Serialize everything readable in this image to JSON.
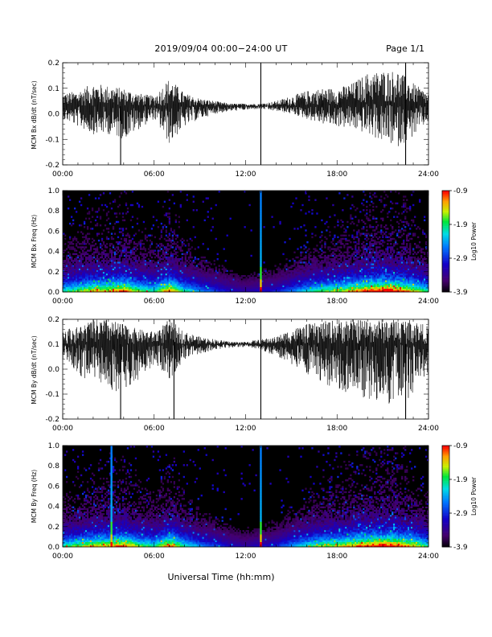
{
  "header": {
    "title": "2019/09/04  00:00−24:00 UT",
    "page": "Page 1/1"
  },
  "footer": {
    "xlabel": "Universal Time (hh:mm)"
  },
  "chart_data": [
    {
      "type": "line",
      "ylabel": "MCM Bx dB/dt (nT/sec)",
      "xlim": [
        0,
        24
      ],
      "ylim": [
        -0.2,
        0.2
      ],
      "xticks": [
        "00:00",
        "06:00",
        "12:00",
        "18:00",
        "24:00"
      ],
      "yticks": [
        "-0.2",
        "-0.1",
        "0.0",
        "0.1",
        "0.2"
      ],
      "grid": false,
      "x_hours": [
        0,
        1,
        2,
        3,
        4,
        5,
        6,
        7,
        8,
        9,
        10,
        11,
        12,
        13,
        14,
        15,
        16,
        17,
        18,
        19,
        20,
        21,
        22,
        23,
        24
      ],
      "y_center": [
        0.03,
        0.03,
        0.03,
        0.03,
        0.03,
        0.03,
        0.03,
        0.03,
        0.03,
        0.03,
        0.03,
        0.03,
        0.03,
        0.03,
        0.03,
        0.03,
        0.03,
        0.035,
        0.035,
        0.04,
        0.04,
        0.04,
        0.04,
        0.035,
        0.03
      ],
      "y_upper": [
        0.08,
        0.09,
        0.12,
        0.11,
        0.1,
        0.08,
        0.07,
        0.14,
        0.08,
        0.06,
        0.05,
        0.04,
        0.04,
        0.04,
        0.05,
        0.07,
        0.09,
        0.1,
        0.1,
        0.12,
        0.16,
        0.17,
        0.17,
        0.12,
        0.08
      ],
      "y_lower": [
        -0.02,
        -0.05,
        -0.08,
        -0.08,
        -0.1,
        -0.06,
        -0.02,
        -0.12,
        -0.05,
        -0.02,
        0.0,
        0.01,
        0.015,
        0.02,
        0.01,
        0.0,
        -0.02,
        -0.04,
        -0.05,
        -0.06,
        -0.08,
        -0.11,
        -0.13,
        -0.09,
        -0.03
      ],
      "spikes": [
        {
          "x": 3.8,
          "y": -0.2
        },
        {
          "x": 13.0,
          "y": 0.2
        },
        {
          "x": 13.0,
          "y": -0.2
        },
        {
          "x": 22.5,
          "y": 0.2
        },
        {
          "x": 22.5,
          "y": -0.2
        }
      ]
    },
    {
      "type": "heatmap",
      "ylabel": "MCM Bx Freq (Hz)",
      "xlim": [
        0,
        24
      ],
      "ylim": [
        0,
        1
      ],
      "xticks": [
        "00:00",
        "06:00",
        "12:00",
        "18:00",
        "24:00"
      ],
      "yticks": [
        "0.0",
        "0.2",
        "0.4",
        "0.6",
        "0.8",
        "1.0"
      ],
      "colorbar": {
        "label": "Log10 Power",
        "ticks": [
          "-0.9",
          "-1.9",
          "-2.9",
          "-3.9"
        ],
        "range": [
          -3.9,
          -0.9
        ]
      },
      "activity": [
        0.6,
        0.7,
        0.8,
        0.8,
        0.9,
        0.7,
        0.6,
        0.9,
        0.6,
        0.45,
        0.35,
        0.25,
        0.2,
        0.25,
        0.3,
        0.4,
        0.55,
        0.65,
        0.7,
        0.8,
        0.95,
        1.0,
        0.95,
        0.8,
        0.6
      ],
      "broadband_lines_x_hours": [
        13.0
      ]
    },
    {
      "type": "line",
      "ylabel": "MCM By dB/dt (nT/sec)",
      "xlim": [
        0,
        24
      ],
      "ylim": [
        -0.2,
        0.2
      ],
      "xticks": [
        "00:00",
        "06:00",
        "12:00",
        "18:00",
        "24:00"
      ],
      "yticks": [
        "-0.2",
        "-0.1",
        "0.0",
        "0.1",
        "0.2"
      ],
      "grid": false,
      "x_hours": [
        0,
        1,
        2,
        3,
        4,
        5,
        6,
        7,
        8,
        9,
        10,
        11,
        12,
        13,
        14,
        15,
        16,
        17,
        18,
        19,
        20,
        21,
        22,
        23,
        24
      ],
      "y_center": [
        0.1,
        0.1,
        0.1,
        0.1,
        0.1,
        0.1,
        0.1,
        0.1,
        0.1,
        0.1,
        0.1,
        0.1,
        0.1,
        0.1,
        0.1,
        0.1,
        0.1,
        0.1,
        0.1,
        0.1,
        0.1,
        0.1,
        0.1,
        0.1,
        0.1
      ],
      "y_upper": [
        0.16,
        0.17,
        0.2,
        0.2,
        0.18,
        0.16,
        0.15,
        0.2,
        0.15,
        0.13,
        0.12,
        0.11,
        0.11,
        0.12,
        0.13,
        0.16,
        0.18,
        0.19,
        0.2,
        0.2,
        0.2,
        0.2,
        0.2,
        0.2,
        0.17
      ],
      "y_lower": [
        0.04,
        -0.02,
        -0.06,
        -0.08,
        -0.1,
        -0.04,
        0.02,
        -0.04,
        0.04,
        0.06,
        0.08,
        0.085,
        0.09,
        0.08,
        0.05,
        0.02,
        -0.02,
        -0.06,
        -0.08,
        -0.1,
        -0.12,
        -0.14,
        -0.15,
        -0.1,
        -0.02
      ],
      "spikes": [
        {
          "x": 3.8,
          "y": -0.2
        },
        {
          "x": 13.0,
          "y": 0.2
        },
        {
          "x": 13.0,
          "y": -0.2
        },
        {
          "x": 22.5,
          "y": -0.2
        },
        {
          "x": 7.3,
          "y": 0.2
        },
        {
          "x": 7.3,
          "y": -0.2
        }
      ]
    },
    {
      "type": "heatmap",
      "ylabel": "MCM By Freq (Hz)",
      "xlim": [
        0,
        24
      ],
      "ylim": [
        0,
        1
      ],
      "xticks": [
        "00:00",
        "06:00",
        "12:00",
        "18:00",
        "24:00"
      ],
      "yticks": [
        "0.0",
        "0.2",
        "0.4",
        "0.6",
        "0.8",
        "1.0"
      ],
      "colorbar": {
        "label": "Log10 Power",
        "ticks": [
          "-0.9",
          "-1.9",
          "-2.9",
          "-3.9"
        ],
        "range": [
          -3.9,
          -0.9
        ]
      },
      "activity": [
        0.6,
        0.7,
        0.8,
        0.8,
        0.9,
        0.7,
        0.6,
        0.9,
        0.6,
        0.45,
        0.35,
        0.25,
        0.2,
        0.25,
        0.3,
        0.45,
        0.6,
        0.7,
        0.75,
        0.85,
        0.95,
        1.0,
        0.95,
        0.8,
        0.6
      ],
      "broadband_lines_x_hours": [
        3.2,
        13.0
      ]
    }
  ]
}
